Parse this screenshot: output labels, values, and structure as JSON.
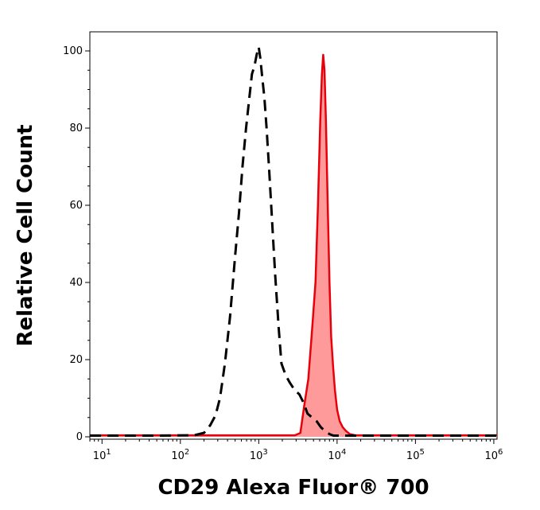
{
  "chart_data": {
    "type": "area",
    "xlabel": "CD29 Alexa Fluor® 700",
    "ylabel": "Relative Cell Count",
    "x_scale": "log",
    "xlim": [
      7,
      1100000
    ],
    "ylim": [
      0,
      105
    ],
    "x_ticks": [
      {
        "base": "10",
        "exp": "1",
        "value": 10
      },
      {
        "base": "10",
        "exp": "2",
        "value": 100
      },
      {
        "base": "10",
        "exp": "3",
        "value": 1000
      },
      {
        "base": "10",
        "exp": "4",
        "value": 10000
      },
      {
        "base": "10",
        "exp": "5",
        "value": 100000
      },
      {
        "base": "10",
        "exp": "6",
        "value": 1000000
      }
    ],
    "y_ticks": [
      {
        "label": "0",
        "value": 0
      },
      {
        "label": "20",
        "value": 20
      },
      {
        "label": "40",
        "value": 40
      },
      {
        "label": "60",
        "value": 60
      },
      {
        "label": "80",
        "value": 80
      },
      {
        "label": "100",
        "value": 100
      }
    ],
    "grid": false,
    "series": [
      {
        "style": "dashed",
        "color": "#000000",
        "fill": "none",
        "points": [
          [
            7,
            0.3
          ],
          [
            50,
            0.3
          ],
          [
            150,
            0.4
          ],
          [
            200,
            1
          ],
          [
            240,
            3
          ],
          [
            280,
            5.5
          ],
          [
            320,
            10
          ],
          [
            370,
            19
          ],
          [
            430,
            31
          ],
          [
            500,
            47
          ],
          [
            560,
            58
          ],
          [
            620,
            70
          ],
          [
            690,
            80
          ],
          [
            760,
            88
          ],
          [
            820,
            94
          ],
          [
            880,
            96
          ],
          [
            940,
            99
          ],
          [
            1000,
            101
          ],
          [
            1050,
            98
          ],
          [
            1110,
            93
          ],
          [
            1180,
            88
          ],
          [
            1260,
            80
          ],
          [
            1360,
            69
          ],
          [
            1480,
            56
          ],
          [
            1620,
            42
          ],
          [
            1800,
            28
          ],
          [
            1950,
            19
          ],
          [
            2200,
            16
          ],
          [
            2500,
            14
          ],
          [
            2900,
            12
          ],
          [
            3300,
            11
          ],
          [
            3700,
            9
          ],
          [
            4200,
            6
          ],
          [
            4800,
            5
          ],
          [
            5500,
            4
          ],
          [
            6200,
            2.5
          ],
          [
            7000,
            1.5
          ],
          [
            8000,
            0.7
          ],
          [
            9000,
            0.3
          ],
          [
            50000,
            0.3
          ],
          [
            1100000,
            0.3
          ]
        ]
      },
      {
        "style": "solid",
        "color": "#e8000b",
        "fill": "#ff9a9a",
        "points": [
          [
            7,
            0.4
          ],
          [
            2900,
            0.4
          ],
          [
            3400,
            1
          ],
          [
            3800,
            8
          ],
          [
            4300,
            15
          ],
          [
            4800,
            28
          ],
          [
            5300,
            40
          ],
          [
            5700,
            60
          ],
          [
            6100,
            82
          ],
          [
            6400,
            94
          ],
          [
            6650,
            99
          ],
          [
            6900,
            95
          ],
          [
            7200,
            82
          ],
          [
            7600,
            60
          ],
          [
            8000,
            40
          ],
          [
            8400,
            26
          ],
          [
            8900,
            18
          ],
          [
            9400,
            12
          ],
          [
            10000,
            7
          ],
          [
            10800,
            4
          ],
          [
            11800,
            2.5
          ],
          [
            13000,
            1.5
          ],
          [
            14500,
            0.7
          ],
          [
            17000,
            0.4
          ],
          [
            100000,
            0.4
          ],
          [
            1100000,
            0.4
          ]
        ]
      }
    ]
  }
}
